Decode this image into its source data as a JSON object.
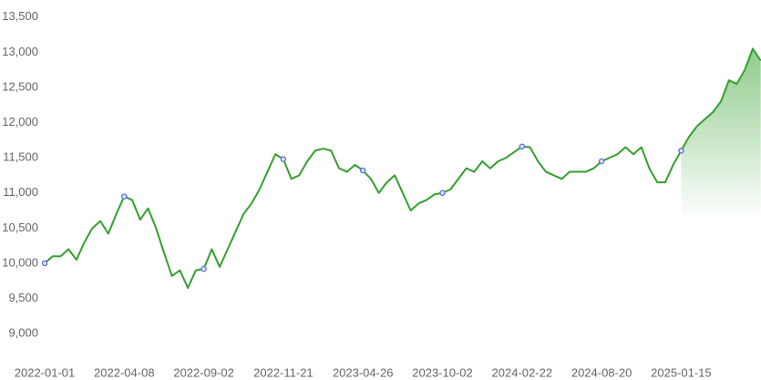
{
  "chart_data": {
    "type": "line",
    "x": [
      "2022-01-01",
      null,
      null,
      null,
      null,
      null,
      null,
      null,
      null,
      null,
      "2022-04-08",
      null,
      null,
      null,
      null,
      null,
      null,
      null,
      null,
      null,
      "2022-09-02",
      null,
      null,
      null,
      null,
      null,
      null,
      null,
      null,
      null,
      "2022-11-21",
      null,
      null,
      null,
      null,
      null,
      null,
      null,
      null,
      null,
      "2023-04-26",
      null,
      null,
      null,
      null,
      null,
      null,
      null,
      null,
      null,
      "2023-10-02",
      null,
      null,
      null,
      null,
      null,
      null,
      null,
      null,
      null,
      "2024-02-22",
      null,
      null,
      null,
      null,
      null,
      null,
      null,
      null,
      null,
      "2024-08-20",
      null,
      null,
      null,
      null,
      null,
      null,
      null,
      null,
      null,
      "2025-01-15",
      null,
      null,
      null,
      null,
      null,
      null,
      null,
      null,
      null,
      null
    ],
    "series": [
      {
        "color": "#33a02c",
        "marker_color": "#5b6fd6",
        "values": [
          10000,
          10100,
          10100,
          10200,
          10050,
          10300,
          10500,
          10600,
          10420,
          10700,
          10950,
          10900,
          10620,
          10780,
          10500,
          10150,
          9820,
          9900,
          9650,
          9900,
          9920,
          10200,
          9950,
          10200,
          10450,
          10700,
          10850,
          11050,
          11300,
          11550,
          11480,
          11200,
          11250,
          11450,
          11600,
          11630,
          11600,
          11350,
          11300,
          11400,
          11320,
          11200,
          11000,
          11150,
          11250,
          11000,
          10750,
          10850,
          10900,
          10980,
          11000,
          11050,
          11200,
          11350,
          11300,
          11450,
          11350,
          11450,
          11500,
          11580,
          11660,
          11650,
          11450,
          11300,
          11250,
          11200,
          11300,
          11300,
          11300,
          11350,
          11450,
          11500,
          11550,
          11650,
          11550,
          11650,
          11350,
          11150,
          11150,
          11400,
          11600,
          11800,
          11950,
          12050,
          12150,
          12300,
          12600,
          12550,
          12750,
          13050,
          12880
        ]
      }
    ],
    "ylim": [
      8600,
      13600
    ],
    "yticks": [
      {
        "value": 9000,
        "label": "9,000"
      },
      {
        "value": 9500,
        "label": "9,500"
      },
      {
        "value": 10000,
        "label": "10,000"
      },
      {
        "value": 10500,
        "label": "10,500"
      },
      {
        "value": 11000,
        "label": "11,000"
      },
      {
        "value": 11500,
        "label": "11,500"
      },
      {
        "value": 12000,
        "label": "12,000"
      },
      {
        "value": 12500,
        "label": "12,500"
      },
      {
        "value": 13000,
        "label": "13,000"
      },
      {
        "value": 13500,
        "label": "13,500"
      }
    ],
    "grid": false
  }
}
